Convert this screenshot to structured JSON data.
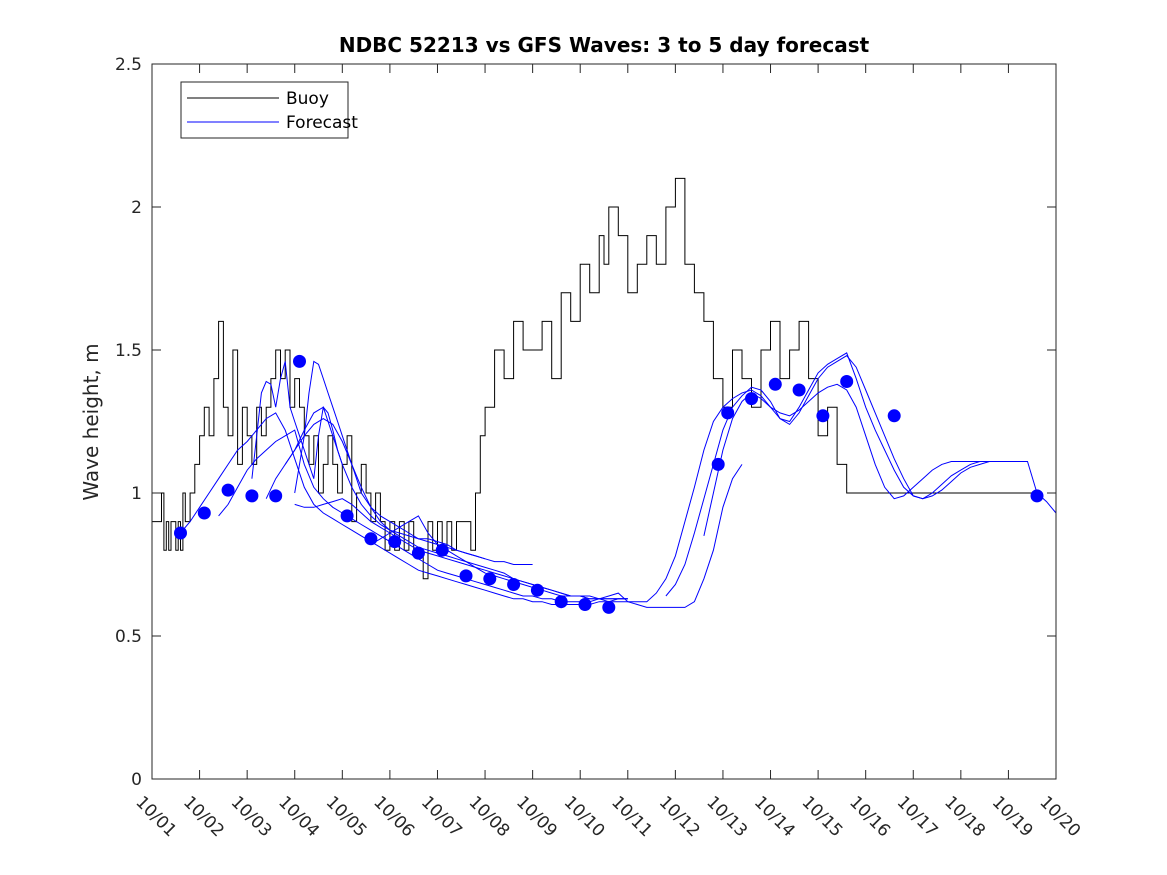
{
  "chart_data": {
    "type": "line",
    "title": "NDBC 52213 vs GFS Waves: 3 to 5 day forecast",
    "xlabel": "",
    "ylabel": "Wave height, m",
    "xlim": [
      0,
      19
    ],
    "ylim": [
      0,
      2.5
    ],
    "grid": false,
    "legend_position": "top-left",
    "x_ticks": [
      0,
      1,
      2,
      3,
      4,
      5,
      6,
      7,
      8,
      9,
      10,
      11,
      12,
      13,
      14,
      15,
      16,
      17,
      18,
      19
    ],
    "x_tick_labels": [
      "10/01",
      "10/02",
      "10/03",
      "10/04",
      "10/05",
      "10/06",
      "10/07",
      "10/08",
      "10/09",
      "10/10",
      "10/11",
      "10/12",
      "10/13",
      "10/14",
      "10/15",
      "10/16",
      "10/17",
      "10/18",
      "10/19",
      "10/20"
    ],
    "y_ticks": [
      0,
      0.5,
      1,
      1.5,
      2,
      2.5
    ],
    "y_tick_labels": [
      "0",
      "0.5",
      "1",
      "1.5",
      "2",
      "2.5"
    ],
    "legend": [
      {
        "label": "Buoy",
        "color": "#000000"
      },
      {
        "label": "Forecast",
        "color": "#0000ff"
      }
    ],
    "buoy": {
      "name": "Buoy",
      "color": "#000000",
      "x": [
        0,
        0.1,
        0.2,
        0.25,
        0.3,
        0.35,
        0.4,
        0.5,
        0.55,
        0.6,
        0.65,
        0.7,
        0.8,
        0.9,
        1.0,
        1.1,
        1.2,
        1.3,
        1.4,
        1.5,
        1.6,
        1.7,
        1.8,
        1.9,
        2.0,
        2.1,
        2.2,
        2.3,
        2.4,
        2.5,
        2.6,
        2.7,
        2.8,
        2.9,
        3.0,
        3.1,
        3.2,
        3.3,
        3.4,
        3.5,
        3.6,
        3.7,
        3.8,
        3.9,
        4.0,
        4.1,
        4.2,
        4.3,
        4.4,
        4.5,
        4.6,
        4.7,
        4.8,
        4.9,
        5.0,
        5.1,
        5.2,
        5.3,
        5.4,
        5.5,
        5.6,
        5.7,
        5.8,
        5.9,
        6.0,
        6.1,
        6.2,
        6.3,
        6.4,
        6.5,
        6.6,
        6.7,
        6.8,
        6.9,
        7.0,
        7.2,
        7.4,
        7.6,
        7.8,
        8.0,
        8.2,
        8.4,
        8.6,
        8.8,
        9.0,
        9.2,
        9.4,
        9.5,
        9.6,
        9.8,
        10.0,
        10.2,
        10.4,
        10.6,
        10.8,
        11.0,
        11.2,
        11.4,
        11.6,
        11.8,
        12.0,
        12.2,
        12.4,
        12.6,
        12.8,
        13.0,
        13.2,
        13.4,
        13.6,
        13.8,
        14.0,
        14.2,
        14.4,
        14.6,
        14.8,
        15.0,
        15.2,
        15.4,
        15.6,
        15.8,
        16.0,
        16.2,
        16.4,
        16.6,
        16.8,
        17.0,
        17.2,
        17.4,
        17.6,
        17.8,
        18.0,
        18.2,
        18.4,
        18.6
      ],
      "y": [
        0.9,
        0.9,
        1.0,
        0.8,
        0.9,
        0.8,
        0.9,
        0.8,
        0.9,
        0.8,
        1.0,
        0.9,
        1.0,
        1.1,
        1.2,
        1.3,
        1.2,
        1.4,
        1.6,
        1.3,
        1.2,
        1.5,
        1.1,
        1.3,
        1.2,
        1.1,
        1.3,
        1.2,
        1.3,
        1.4,
        1.5,
        1.4,
        1.5,
        1.3,
        1.4,
        1.3,
        1.2,
        1.1,
        1.2,
        1.0,
        1.1,
        1.2,
        1.1,
        1.0,
        1.1,
        1.2,
        0.9,
        1.0,
        1.1,
        1.0,
        0.9,
        1.0,
        0.9,
        0.8,
        0.9,
        0.8,
        0.9,
        0.8,
        0.9,
        0.8,
        0.8,
        0.7,
        0.9,
        0.8,
        0.9,
        0.8,
        0.9,
        0.8,
        0.9,
        0.9,
        0.9,
        0.8,
        1.0,
        1.2,
        1.3,
        1.5,
        1.4,
        1.6,
        1.5,
        1.5,
        1.6,
        1.4,
        1.7,
        1.6,
        1.8,
        1.7,
        1.9,
        1.8,
        2.0,
        1.9,
        1.7,
        1.8,
        1.9,
        1.8,
        2.0,
        2.1,
        1.8,
        1.7,
        1.6,
        1.4,
        1.3,
        1.5,
        1.4,
        1.3,
        1.5,
        1.6,
        1.4,
        1.5,
        1.6,
        1.4,
        1.2,
        1.3,
        1.1,
        1.0,
        1.0,
        1.0,
        1.0,
        1.0,
        1.0,
        1.0,
        1.0,
        1.0,
        1.0,
        1.0,
        1.0,
        1.0,
        1.0,
        1.0,
        1.0,
        1.0,
        1.0,
        1.0,
        1.0,
        1.0
      ]
    },
    "forecast_lines": [
      {
        "name": "Forecast",
        "color": "#0000ff",
        "x": [
          0.6,
          0.8,
          1.0,
          1.2,
          1.4,
          1.6,
          1.8,
          2.0,
          2.2,
          2.4,
          2.6,
          2.8,
          3.0,
          3.2,
          3.4,
          3.6,
          3.8,
          4.0,
          4.2,
          4.4,
          4.6,
          4.8,
          5.0,
          5.2,
          5.4,
          5.6,
          5.8,
          6.0,
          6.2,
          6.4,
          6.6,
          6.8,
          7.0,
          7.2,
          7.4,
          7.6,
          7.8,
          8.0,
          8.2,
          8.4,
          8.6,
          8.8,
          9.0,
          9.2,
          9.4,
          9.6,
          9.8,
          10.0
        ],
        "y": [
          0.86,
          0.9,
          0.95,
          1.0,
          1.05,
          1.1,
          1.15,
          1.18,
          1.22,
          1.26,
          1.28,
          1.22,
          1.12,
          1.02,
          0.96,
          0.93,
          0.91,
          0.89,
          0.87,
          0.85,
          0.83,
          0.81,
          0.79,
          0.77,
          0.75,
          0.73,
          0.72,
          0.71,
          0.7,
          0.69,
          0.68,
          0.67,
          0.66,
          0.65,
          0.64,
          0.63,
          0.63,
          0.62,
          0.62,
          0.61,
          0.61,
          0.61,
          0.61,
          0.61,
          0.62,
          0.62,
          0.63,
          0.63
        ]
      },
      {
        "name": "Forecast",
        "color": "#0000ff",
        "x": [
          1.4,
          1.6,
          1.8,
          2.0,
          2.2,
          2.4,
          2.6,
          2.8,
          3.0,
          3.2,
          3.4,
          3.6,
          3.8,
          4.0,
          4.2,
          4.4,
          4.6,
          4.8,
          5.0,
          5.2,
          5.4,
          5.6,
          5.8,
          6.0,
          6.2,
          6.4,
          6.6,
          6.8,
          7.0,
          7.2,
          7.4,
          7.6,
          7.8,
          8.0,
          8.2,
          8.4,
          8.6,
          8.8,
          9.0,
          9.2,
          9.4,
          9.6,
          9.8,
          10.0,
          10.2,
          10.4,
          10.6,
          10.8,
          11.0,
          11.2,
          11.4,
          11.6,
          11.8,
          12.0,
          12.2,
          12.4
        ],
        "y": [
          0.92,
          0.96,
          1.02,
          1.08,
          1.12,
          1.15,
          1.18,
          1.2,
          1.22,
          1.1,
          1.02,
          0.98,
          0.95,
          0.93,
          0.91,
          0.89,
          0.87,
          0.85,
          0.83,
          0.81,
          0.79,
          0.77,
          0.75,
          0.73,
          0.72,
          0.71,
          0.7,
          0.69,
          0.68,
          0.67,
          0.66,
          0.65,
          0.64,
          0.64,
          0.63,
          0.63,
          0.62,
          0.62,
          0.62,
          0.62,
          0.63,
          0.64,
          0.65,
          0.62,
          0.61,
          0.6,
          0.6,
          0.6,
          0.6,
          0.6,
          0.62,
          0.7,
          0.8,
          0.95,
          1.05,
          1.1
        ]
      },
      {
        "name": "Forecast",
        "color": "#0000ff",
        "x": [
          2.1,
          2.2,
          2.3,
          2.4,
          2.5,
          2.6,
          2.7,
          2.8,
          2.9,
          3.0,
          3.1,
          3.2,
          3.3,
          3.4,
          3.5,
          3.6,
          3.7,
          3.8,
          3.9,
          4.0
        ],
        "y": [
          1.05,
          1.2,
          1.35,
          1.39,
          1.38,
          1.3,
          1.4,
          1.46,
          1.3,
          1.25,
          1.2,
          1.15,
          1.1,
          1.05,
          1.2,
          1.3,
          1.28,
          1.22,
          1.15,
          1.1
        ]
      },
      {
        "name": "Forecast",
        "color": "#0000ff",
        "x": [
          2.4,
          2.6,
          2.8,
          3.0,
          3.2,
          3.4,
          3.6,
          3.8,
          4.0,
          4.2,
          4.4,
          4.6,
          4.8,
          5.0,
          5.2,
          5.4,
          5.6,
          5.8,
          6.0,
          6.2,
          6.4,
          6.6,
          6.8,
          7.0,
          7.2,
          7.4,
          7.6,
          7.8,
          8.0,
          8.2,
          8.4,
          8.6,
          8.8,
          9.0,
          9.2,
          9.4,
          9.6,
          9.8,
          10.0
        ],
        "y": [
          0.98,
          1.05,
          1.1,
          1.15,
          1.2,
          1.24,
          1.26,
          1.24,
          1.18,
          1.1,
          1.02,
          0.95,
          0.9,
          0.87,
          0.85,
          0.83,
          0.81,
          0.8,
          0.79,
          0.78,
          0.77,
          0.76,
          0.75,
          0.74,
          0.73,
          0.72,
          0.7,
          0.69,
          0.68,
          0.67,
          0.66,
          0.65,
          0.64,
          0.64,
          0.63,
          0.63,
          0.63,
          0.63,
          0.63
        ]
      },
      {
        "name": "Forecast",
        "color": "#0000ff",
        "x": [
          2.8,
          3.0,
          3.2,
          3.4,
          3.6,
          3.8,
          4.0,
          4.2,
          4.4,
          4.6,
          4.8,
          5.0,
          5.2,
          5.4,
          5.6,
          5.8,
          6.0,
          6.2,
          6.4,
          6.6,
          6.8,
          7.0,
          7.2,
          7.4,
          7.6,
          7.8,
          8.0
        ],
        "y": [
          1.1,
          1.15,
          1.22,
          1.28,
          1.3,
          1.2,
          1.1,
          1.02,
          0.96,
          0.92,
          0.89,
          0.87,
          0.86,
          0.85,
          0.84,
          0.84,
          0.83,
          0.82,
          0.8,
          0.79,
          0.78,
          0.77,
          0.76,
          0.76,
          0.75,
          0.75,
          0.75
        ]
      },
      {
        "name": "Forecast",
        "color": "#0000ff",
        "x": [
          3.0,
          3.2,
          3.4,
          3.6,
          3.8,
          4.0,
          4.2,
          4.4,
          4.6,
          4.8,
          5.0,
          5.2,
          5.4,
          5.6,
          5.8,
          6.0,
          6.2,
          6.4,
          6.6,
          6.8,
          7.0,
          7.2,
          7.4,
          7.6,
          7.8,
          8.0,
          8.2,
          8.4,
          8.6,
          8.8,
          9.0,
          9.2,
          9.4,
          9.6,
          9.8,
          10.0
        ],
        "y": [
          0.96,
          0.95,
          0.95,
          0.96,
          0.97,
          0.98,
          0.96,
          0.93,
          0.9,
          0.88,
          0.86,
          0.84,
          0.82,
          0.8,
          0.79,
          0.78,
          0.77,
          0.76,
          0.75,
          0.74,
          0.73,
          0.72,
          0.71,
          0.7,
          0.69,
          0.68,
          0.67,
          0.66,
          0.65,
          0.64,
          0.64,
          0.64,
          0.63,
          0.63,
          0.63,
          0.63
        ]
      },
      {
        "name": "Forecast",
        "color": "#0000ff",
        "x": [
          3.0,
          3.1,
          3.2,
          3.3,
          3.4,
          3.5,
          3.6,
          3.7,
          3.8,
          3.9,
          4.0,
          4.2,
          4.4,
          4.6,
          4.8,
          5.0,
          5.2,
          5.4,
          5.6,
          5.8,
          6.0,
          6.2,
          6.4,
          6.6,
          6.8,
          7.0
        ],
        "y": [
          1.0,
          1.1,
          1.2,
          1.35,
          1.46,
          1.45,
          1.4,
          1.35,
          1.3,
          1.25,
          1.2,
          1.1,
          1.0,
          0.95,
          0.92,
          0.9,
          0.88,
          0.86,
          0.84,
          0.83,
          0.82,
          0.81,
          0.8,
          0.79,
          0.78,
          0.77
        ]
      },
      {
        "name": "Forecast",
        "color": "#0000ff",
        "x": [
          4.6,
          4.8,
          5.0,
          5.2,
          5.4,
          5.6,
          5.8,
          6.0,
          6.2,
          6.4,
          6.6,
          6.8,
          7.0,
          7.2,
          7.4,
          7.6,
          7.8,
          8.0,
          8.2,
          8.4,
          8.6,
          8.8,
          9.0,
          9.2,
          9.4,
          9.6,
          9.8,
          10.0,
          10.2,
          10.4,
          10.6,
          10.8,
          11.0,
          11.2,
          11.4,
          11.6,
          11.8,
          12.0,
          12.2,
          12.4,
          12.6,
          12.8,
          13.0,
          13.2,
          13.4,
          13.6,
          13.8,
          14.0,
          14.2,
          14.4,
          14.6,
          14.8,
          15.0,
          15.2,
          15.4,
          15.6,
          15.8,
          16.0,
          16.2,
          16.4,
          16.6,
          16.8,
          17.0,
          17.2,
          17.4,
          17.6,
          17.8,
          18.0,
          18.2,
          18.4,
          18.6,
          18.8,
          19.0
        ],
        "y": [
          0.82,
          0.84,
          0.86,
          0.88,
          0.9,
          0.92,
          0.86,
          0.82,
          0.8,
          0.78,
          0.76,
          0.74,
          0.72,
          0.71,
          0.7,
          0.69,
          0.68,
          0.67,
          0.66,
          0.65,
          0.64,
          0.64,
          0.64,
          0.63,
          0.63,
          0.62,
          0.62,
          0.62,
          0.62,
          0.62,
          0.65,
          0.7,
          0.78,
          0.9,
          1.02,
          1.15,
          1.25,
          1.3,
          1.33,
          1.35,
          1.36,
          1.34,
          1.3,
          1.28,
          1.27,
          1.29,
          1.32,
          1.35,
          1.37,
          1.38,
          1.36,
          1.3,
          1.2,
          1.1,
          1.02,
          0.98,
          0.99,
          1.02,
          1.05,
          1.08,
          1.1,
          1.11,
          1.11,
          1.11,
          1.11,
          1.11,
          1.11,
          1.11,
          1.11,
          1.11,
          1.0,
          0.97,
          0.93
        ]
      },
      {
        "name": "Forecast",
        "color": "#0000ff",
        "x": [
          10.8,
          11.0,
          11.2,
          11.4,
          11.6,
          11.8,
          12.0,
          12.2,
          12.4,
          12.6,
          12.8,
          13.0,
          13.2,
          13.4,
          13.6,
          13.8,
          14.0,
          14.2,
          14.4,
          14.6,
          14.8,
          15.0,
          15.2,
          15.4,
          15.6,
          15.8,
          16.0,
          16.2,
          16.4,
          16.6,
          16.8,
          17.0,
          17.2,
          17.4,
          17.6,
          17.8,
          18.0,
          18.2,
          18.4
        ],
        "y": [
          0.64,
          0.68,
          0.75,
          0.86,
          0.98,
          1.1,
          1.22,
          1.3,
          1.34,
          1.37,
          1.36,
          1.32,
          1.26,
          1.24,
          1.28,
          1.34,
          1.4,
          1.44,
          1.46,
          1.48,
          1.44,
          1.36,
          1.28,
          1.2,
          1.12,
          1.05,
          0.99,
          0.98,
          0.99,
          1.01,
          1.04,
          1.07,
          1.09,
          1.1,
          1.11,
          1.11,
          1.11,
          1.11,
          1.11
        ]
      },
      {
        "name": "Forecast",
        "color": "#0000ff",
        "x": [
          11.6,
          11.8,
          12.0,
          12.2,
          12.4,
          12.6,
          12.8,
          13.0,
          13.2,
          13.4,
          13.6,
          13.8,
          14.0,
          14.2,
          14.4,
          14.6,
          14.8,
          15.0,
          15.2,
          15.4,
          15.6,
          15.8,
          16.0,
          16.2,
          16.4,
          16.6,
          16.8,
          17.0,
          17.2,
          17.4,
          17.6,
          17.8,
          18.0
        ],
        "y": [
          0.85,
          1.0,
          1.15,
          1.26,
          1.32,
          1.35,
          1.33,
          1.3,
          1.26,
          1.25,
          1.3,
          1.36,
          1.42,
          1.45,
          1.47,
          1.49,
          1.4,
          1.3,
          1.22,
          1.15,
          1.08,
          1.02,
          0.99,
          0.98,
          1.0,
          1.03,
          1.06,
          1.08,
          1.1,
          1.11,
          1.11,
          1.11,
          1.11
        ]
      }
    ],
    "forecast_points": {
      "name": "Forecast",
      "color": "#0000ff",
      "x": [
        0.6,
        1.1,
        1.6,
        2.1,
        2.6,
        3.1,
        4.1,
        4.6,
        5.1,
        5.6,
        6.1,
        6.6,
        7.1,
        7.6,
        8.1,
        8.6,
        9.1,
        9.6,
        11.9,
        12.1,
        12.6,
        13.1,
        13.6,
        14.1,
        14.6,
        15.6,
        18.6
      ],
      "y": [
        0.86,
        0.93,
        1.01,
        0.99,
        0.99,
        1.46,
        0.92,
        0.84,
        0.83,
        0.79,
        0.8,
        0.71,
        0.7,
        0.68,
        0.66,
        0.62,
        0.61,
        0.6,
        1.1,
        1.28,
        1.33,
        1.38,
        1.36,
        1.27,
        1.39,
        1.27,
        0.99
      ]
    }
  }
}
